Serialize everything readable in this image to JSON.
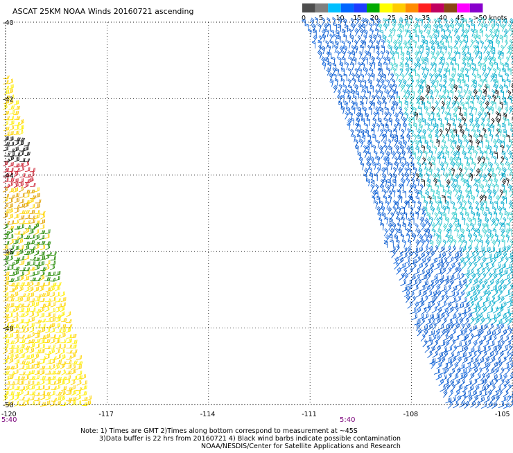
{
  "title": "ASCAT 25KM NOAA Winds 20160721 ascending",
  "colorbar": {
    "colors": [
      "#4d4d4d",
      "#7f7f7f",
      "#00bfff",
      "#0066ff",
      "#1e3cff",
      "#00aa00",
      "#ffff00",
      "#ffcc00",
      "#ff8c00",
      "#ff2020",
      "#c00060",
      "#8b4513",
      "#ff00ff",
      "#8800cc"
    ],
    "labels": [
      "0",
      "5",
      "10",
      "15",
      "20",
      "25",
      "30",
      "35",
      "40",
      "45",
      ">50 knots"
    ]
  },
  "map": {
    "lon_range": [
      -120,
      -105
    ],
    "lat_range": [
      -50,
      -40
    ],
    "lat_labels": [
      "-40",
      "-42",
      "-44",
      "-46",
      "-48",
      "-50"
    ],
    "lon_labels": [
      "-120",
      "-117",
      "-114",
      "-111",
      "-108",
      "-105"
    ],
    "lat_ticks": [
      -40,
      -42,
      -44,
      -46,
      -48,
      -50
    ],
    "lon_ticks": [
      -120,
      -117,
      -114,
      -111,
      -108,
      -105
    ]
  },
  "time_labels": [
    "5:40",
    "5:40"
  ],
  "time_color": "#7a007a",
  "swaths": {
    "left": {
      "colors": [
        "#ffee00",
        "#ffd400",
        "#e0a000",
        "#cc2233",
        "#228800",
        "#111111"
      ]
    },
    "right": {
      "colors": [
        "#0055cc",
        "#1166dd",
        "#00aacc",
        "#33cccc",
        "#55dddd",
        "#111111"
      ]
    }
  },
  "notes": [
    "Note: 1) Times are GMT 2)Times along bottom correspond to measurement at ~45S",
    "3)Data buffer is 22 hrs from 20160721 4) Black wind barbs indicate possible contamination",
    "NOAA/NESDIS/Center for Satellite Applications and Research"
  ]
}
